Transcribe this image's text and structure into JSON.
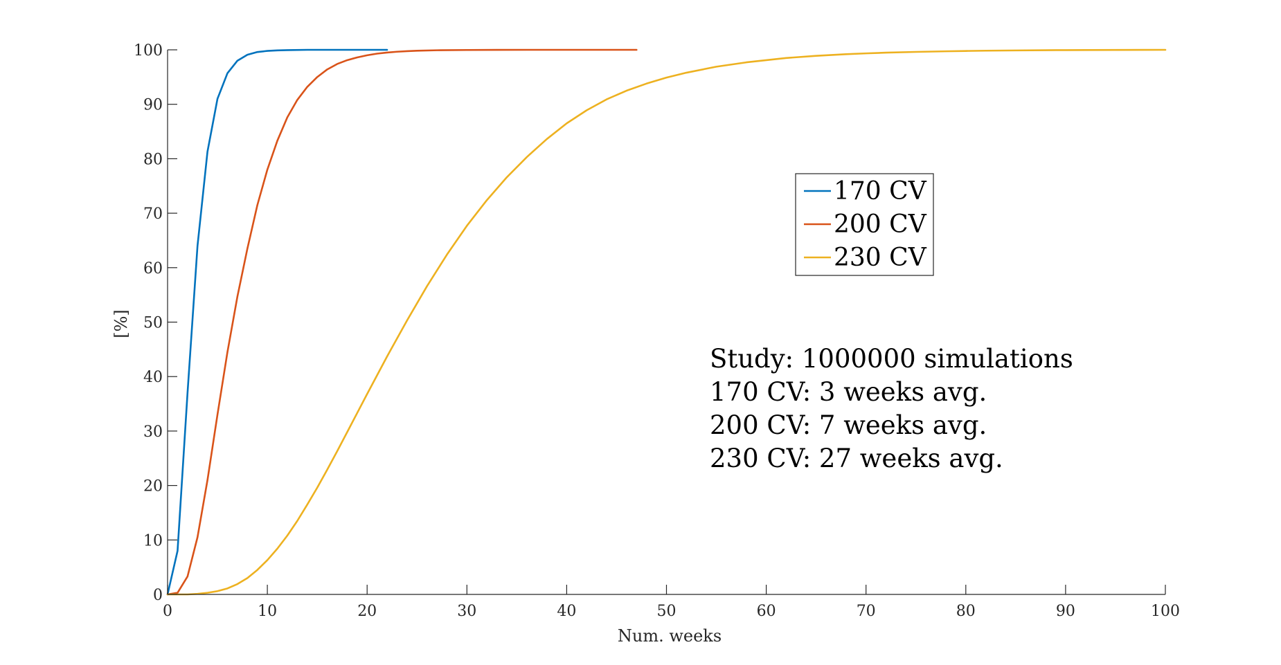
{
  "chart_data": {
    "type": "line",
    "title": "",
    "xlabel": "Num. weeks",
    "ylabel": "[%]",
    "xlim": [
      0,
      100
    ],
    "ylim": [
      0,
      100
    ],
    "xticks": [
      0,
      10,
      20,
      30,
      40,
      50,
      60,
      70,
      80,
      90,
      100
    ],
    "yticks": [
      0,
      10,
      20,
      30,
      40,
      50,
      60,
      70,
      80,
      90,
      100
    ],
    "grid": false,
    "legend_position": "upper-right-center",
    "series": [
      {
        "name": "170 CV",
        "color": "#0072BD",
        "x": [
          0,
          1,
          2,
          3,
          4,
          5,
          6,
          7,
          8,
          9,
          10,
          11,
          12,
          14,
          16,
          18,
          20,
          22
        ],
        "y": [
          0,
          8,
          37,
          64,
          81.3,
          91,
          95.7,
          98,
          99.1,
          99.6,
          99.8,
          99.9,
          99.95,
          100,
          100,
          100,
          100,
          100
        ]
      },
      {
        "name": "200 CV",
        "color": "#D95319",
        "x": [
          0,
          1,
          2,
          3,
          4,
          5,
          6,
          7,
          8,
          9,
          10,
          11,
          12,
          13,
          14,
          15,
          16,
          17,
          18,
          19,
          20,
          21,
          22,
          23,
          24,
          25,
          27,
          30,
          33,
          36,
          40,
          44,
          47
        ],
        "y": [
          0,
          0.3,
          3.3,
          10.5,
          21,
          33,
          44.5,
          54.7,
          63.5,
          71.5,
          78,
          83.3,
          87.6,
          90.8,
          93.2,
          95,
          96.4,
          97.4,
          98.1,
          98.6,
          99,
          99.3,
          99.5,
          99.65,
          99.75,
          99.83,
          99.92,
          99.97,
          99.99,
          100,
          100,
          100,
          100
        ]
      },
      {
        "name": "230 CV",
        "color": "#EDB120",
        "x": [
          0,
          1,
          2,
          3,
          4,
          5,
          6,
          7,
          8,
          9,
          10,
          11,
          12,
          13,
          14,
          15,
          16,
          17,
          18,
          19,
          20,
          22,
          24,
          26,
          28,
          30,
          32,
          34,
          36,
          38,
          40,
          42,
          44,
          46,
          48,
          50,
          52,
          55,
          58,
          60,
          62,
          65,
          68,
          70,
          72,
          75,
          78,
          80,
          82,
          85,
          88,
          90,
          92,
          95,
          98,
          100
        ],
        "y": [
          0,
          0,
          0,
          0.1,
          0.3,
          0.6,
          1.1,
          1.9,
          3,
          4.5,
          6.3,
          8.4,
          10.8,
          13.5,
          16.5,
          19.6,
          22.9,
          26.3,
          29.8,
          33.3,
          36.8,
          43.7,
          50.3,
          56.6,
          62.4,
          67.7,
          72.4,
          76.6,
          80.3,
          83.6,
          86.5,
          88.9,
          90.9,
          92.5,
          93.8,
          94.9,
          95.8,
          96.9,
          97.7,
          98.1,
          98.5,
          98.9,
          99.2,
          99.35,
          99.48,
          99.62,
          99.73,
          99.79,
          99.84,
          99.89,
          99.93,
          99.95,
          99.96,
          99.98,
          99.99,
          100
        ]
      }
    ],
    "annotations": [
      "Study: 1000000 simulations",
      "170 CV: 3 weeks avg.",
      "200 CV: 7 weeks avg.",
      "230 CV: 27 weeks avg."
    ]
  }
}
